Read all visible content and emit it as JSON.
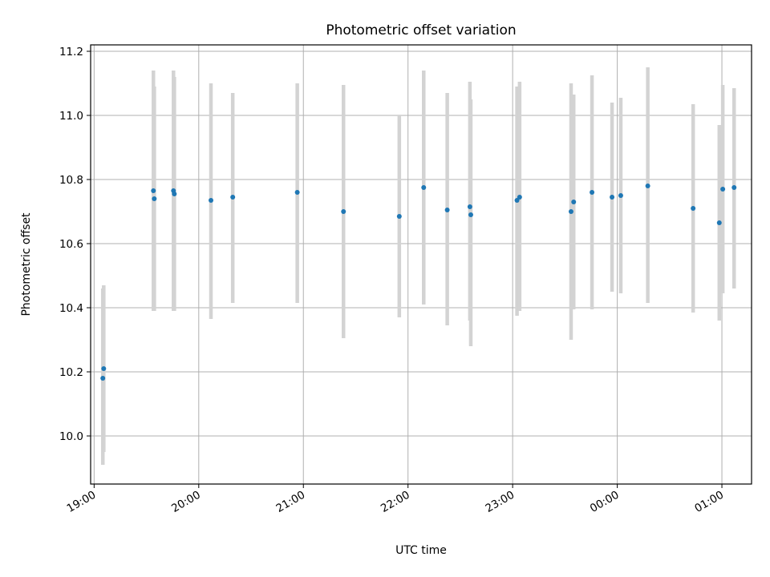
{
  "chart_data": {
    "type": "scatter",
    "title": "Photometric offset variation",
    "xlabel": "UTC time",
    "ylabel": "Photometric offset",
    "x_axis": {
      "kind": "time",
      "range": [
        "2000-01-01T18:58:00",
        "2000-01-02T01:17:00"
      ],
      "ticks": [
        {
          "t": "2000-01-01T19:00:00",
          "label": "19:00"
        },
        {
          "t": "2000-01-01T20:00:00",
          "label": "20:00"
        },
        {
          "t": "2000-01-01T21:00:00",
          "label": "21:00"
        },
        {
          "t": "2000-01-01T22:00:00",
          "label": "22:00"
        },
        {
          "t": "2000-01-01T23:00:00",
          "label": "23:00"
        },
        {
          "t": "2000-01-02T00:00:00",
          "label": "00:00"
        },
        {
          "t": "2000-01-02T01:00:00",
          "label": "01:00"
        }
      ]
    },
    "y_axis": {
      "range": [
        9.85,
        11.22
      ],
      "ticks": [
        10.0,
        10.2,
        10.4,
        10.6,
        10.8,
        11.0,
        11.2
      ],
      "tick_labels": [
        "10.0",
        "10.2",
        "10.4",
        "10.6",
        "10.8",
        "11.0",
        "11.2"
      ]
    },
    "grid": true,
    "marker_color": "#1f77b4",
    "errorbar_color": "#d3d3d3",
    "series": [
      {
        "points": [
          {
            "t": "2000-01-01T19:05:00",
            "y": 10.18,
            "lo": 9.91,
            "hi": 10.46
          },
          {
            "t": "2000-01-01T19:05:30",
            "y": 10.21,
            "lo": 9.95,
            "hi": 10.47
          },
          {
            "t": "2000-01-01T19:34:00",
            "y": 10.765,
            "lo": 10.39,
            "hi": 11.14
          },
          {
            "t": "2000-01-01T19:34:30",
            "y": 10.74,
            "lo": 10.39,
            "hi": 11.09
          },
          {
            "t": "2000-01-01T19:45:30",
            "y": 10.765,
            "lo": 10.39,
            "hi": 11.14
          },
          {
            "t": "2000-01-01T19:46:00",
            "y": 10.755,
            "lo": 10.39,
            "hi": 11.12
          },
          {
            "t": "2000-01-01T20:07:00",
            "y": 10.735,
            "lo": 10.365,
            "hi": 11.1
          },
          {
            "t": "2000-01-01T20:19:30",
            "y": 10.745,
            "lo": 10.415,
            "hi": 11.07
          },
          {
            "t": "2000-01-01T20:56:30",
            "y": 10.76,
            "lo": 10.415,
            "hi": 11.1
          },
          {
            "t": "2000-01-01T21:23:00",
            "y": 10.7,
            "lo": 10.305,
            "hi": 11.095
          },
          {
            "t": "2000-01-01T21:55:00",
            "y": 10.685,
            "lo": 10.37,
            "hi": 11.0
          },
          {
            "t": "2000-01-01T22:09:00",
            "y": 10.775,
            "lo": 10.41,
            "hi": 11.14
          },
          {
            "t": "2000-01-01T22:22:30",
            "y": 10.705,
            "lo": 10.345,
            "hi": 11.07
          },
          {
            "t": "2000-01-01T22:35:30",
            "y": 10.715,
            "lo": 10.36,
            "hi": 11.105
          },
          {
            "t": "2000-01-01T22:36:00",
            "y": 10.69,
            "lo": 10.28,
            "hi": 11.05
          },
          {
            "t": "2000-01-01T23:02:30",
            "y": 10.735,
            "lo": 10.375,
            "hi": 11.09
          },
          {
            "t": "2000-01-01T23:04:00",
            "y": 10.745,
            "lo": 10.39,
            "hi": 11.105
          },
          {
            "t": "2000-01-01T23:33:30",
            "y": 10.7,
            "lo": 10.3,
            "hi": 11.1
          },
          {
            "t": "2000-01-01T23:35:00",
            "y": 10.73,
            "lo": 10.395,
            "hi": 11.065
          },
          {
            "t": "2000-01-01T23:45:30",
            "y": 10.76,
            "lo": 10.395,
            "hi": 11.125
          },
          {
            "t": "2000-01-01T23:57:00",
            "y": 10.745,
            "lo": 10.45,
            "hi": 11.04
          },
          {
            "t": "2000-01-02T00:02:00",
            "y": 10.75,
            "lo": 10.445,
            "hi": 11.055
          },
          {
            "t": "2000-01-02T00:17:30",
            "y": 10.78,
            "lo": 10.415,
            "hi": 11.15
          },
          {
            "t": "2000-01-02T00:43:30",
            "y": 10.71,
            "lo": 10.385,
            "hi": 11.035
          },
          {
            "t": "2000-01-02T00:58:30",
            "y": 10.665,
            "lo": 10.36,
            "hi": 10.97
          },
          {
            "t": "2000-01-02T01:00:30",
            "y": 10.77,
            "lo": 10.445,
            "hi": 11.095
          },
          {
            "t": "2000-01-02T01:07:00",
            "y": 10.775,
            "lo": 10.46,
            "hi": 11.085
          }
        ]
      }
    ]
  }
}
